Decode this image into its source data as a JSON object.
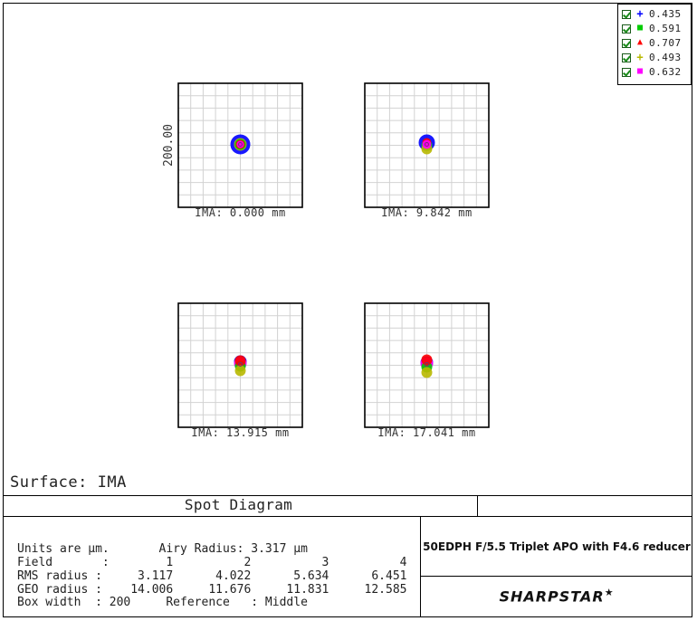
{
  "chart_data": {
    "type": "scatter",
    "title": "Spot Diagram",
    "surface_label": "Surface: IMA",
    "box_width_um": 200,
    "scale_bar_label": "200.00",
    "grid": true,
    "legend_placement": "top-right",
    "wavelengths": [
      {
        "value": "0.435",
        "color": "#0000ff",
        "symbol": "+"
      },
      {
        "value": "0.591",
        "color": "#00cc00",
        "symbol": "■"
      },
      {
        "value": "0.707",
        "color": "#ff0000",
        "symbol": "▲"
      },
      {
        "value": "0.493",
        "color": "#b8b800",
        "symbol": "+"
      },
      {
        "value": "0.632",
        "color": "#ff00ff",
        "symbol": "■"
      }
    ],
    "fields": [
      {
        "label": "IMA: 0.000 mm",
        "spots": [
          {
            "w": 0,
            "dx": 0,
            "dy": 0,
            "r": 11
          },
          {
            "w": 1,
            "dx": 0,
            "dy": 0,
            "r": 6
          },
          {
            "w": 2,
            "dx": 0,
            "dy": 0,
            "r": 5
          },
          {
            "w": 3,
            "dx": 0,
            "dy": 0,
            "r": 7
          },
          {
            "w": 4,
            "dx": 0,
            "dy": 0,
            "r": 4
          }
        ]
      },
      {
        "label": "IMA: 9.842 mm",
        "spots": [
          {
            "w": 0,
            "dx": 0,
            "dy": -2,
            "r": 9
          },
          {
            "w": 1,
            "dx": 0,
            "dy": 1,
            "r": 6
          },
          {
            "w": 2,
            "dx": 0,
            "dy": -2,
            "r": 5
          },
          {
            "w": 3,
            "dx": 0,
            "dy": 5,
            "r": 6
          },
          {
            "w": 4,
            "dx": 0,
            "dy": 0,
            "r": 5
          }
        ]
      },
      {
        "label": "IMA: 13.915 mm",
        "spots": [
          {
            "w": 0,
            "dx": 0,
            "dy": -3,
            "r": 7
          },
          {
            "w": 1,
            "dx": 0,
            "dy": 2,
            "r": 6
          },
          {
            "w": 2,
            "dx": 0,
            "dy": -4,
            "r": 6
          },
          {
            "w": 3,
            "dx": 0,
            "dy": 7,
            "r": 6
          },
          {
            "w": 4,
            "dx": 0,
            "dy": -1,
            "r": 7
          }
        ]
      },
      {
        "label": "IMA: 17.041 mm",
        "spots": [
          {
            "w": 0,
            "dx": 0,
            "dy": -2,
            "r": 7
          },
          {
            "w": 1,
            "dx": 0,
            "dy": 3,
            "r": 6
          },
          {
            "w": 2,
            "dx": 0,
            "dy": -5,
            "r": 6
          },
          {
            "w": 3,
            "dx": 0,
            "dy": 9,
            "r": 6
          },
          {
            "w": 4,
            "dx": 0,
            "dy": -1,
            "r": 7
          }
        ]
      }
    ],
    "field_numbers": [
      1,
      2,
      3,
      4
    ],
    "rms_radius": [
      3.117,
      4.022,
      5.634,
      6.451
    ],
    "geo_radius": [
      14.006,
      11.676,
      11.831,
      12.585
    ]
  },
  "info": {
    "line1": "Units are µm.       Airy Radius: 3.317 µm",
    "line2": "Field       :        1          2          3          4",
    "line3": "RMS radius :     3.117      4.022      5.634      6.451",
    "line4": "GEO radius :    14.006     11.676     11.831     12.585",
    "line5": "Box width  : 200     Reference   : Middle"
  },
  "lens_title": "50EDPH F/5.5 Triplet APO with F4.6 reducer",
  "brand": "SHARPSTAR",
  "brand_mark": "★"
}
